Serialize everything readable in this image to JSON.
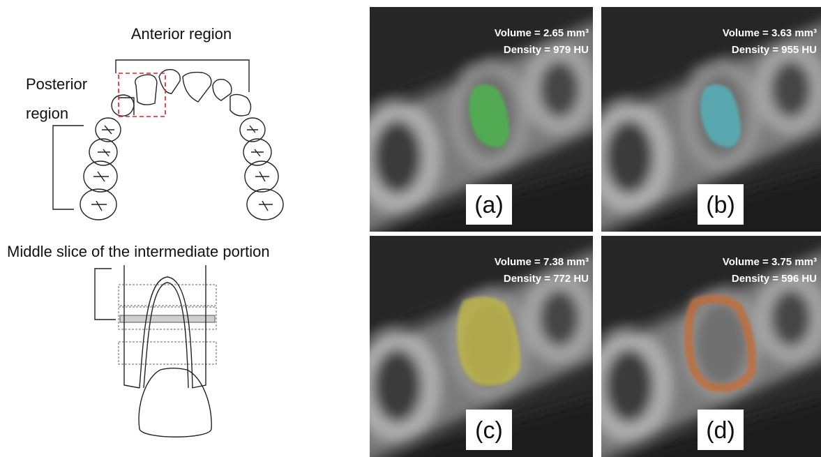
{
  "left": {
    "anterior_label": "Anterior region",
    "posterior_label": [
      "Posterior",
      "region"
    ],
    "slice_label": "Middle slice of the intermediate portion"
  },
  "panels": [
    {
      "label": "(a)",
      "volume": "Volume = 2.65 mm³",
      "density": "Density  = 979 HU"
    },
    {
      "label": "(b)",
      "volume": "Volume = 3.63 mm³",
      "density": "Density = 955 HU"
    },
    {
      "label": "(c)",
      "volume": "Volume = 7.38 mm³",
      "density": "Density = 772 HU"
    },
    {
      "label": "(d)",
      "volume": "Volume = 3.75 mm³",
      "density": "Density = 596 HU"
    }
  ]
}
